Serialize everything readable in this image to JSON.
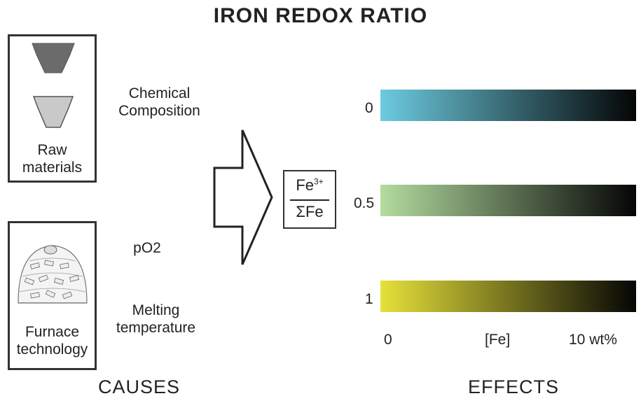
{
  "title": "IRON REDOX RATIO",
  "causes": {
    "raw_materials_label": [
      "Raw",
      "materials"
    ],
    "chemical_composition_label": [
      "Chemical",
      "Composition"
    ],
    "po2_label": "pO2",
    "melting_temperature_label": [
      "Melting",
      "temperature"
    ],
    "furnace_label": [
      "Furnace",
      "technology"
    ],
    "footer": "CAUSES"
  },
  "formula": {
    "numerator_base": "Fe",
    "numerator_sup": "3+",
    "denominator": "ΣFe"
  },
  "effects": {
    "bars": [
      {
        "ratio_label": "0",
        "start_color": "#6ccbe0",
        "end_color": "#050505"
      },
      {
        "ratio_label": "0.5",
        "start_color": "#b3dca0",
        "end_color": "#050505"
      },
      {
        "ratio_label": "1",
        "start_color": "#e6e13a",
        "end_color": "#050505"
      }
    ],
    "axis": {
      "min_label": "0",
      "mid_label": "[Fe]",
      "max_label": "10 wt%"
    },
    "footer": "EFFECTS"
  }
}
